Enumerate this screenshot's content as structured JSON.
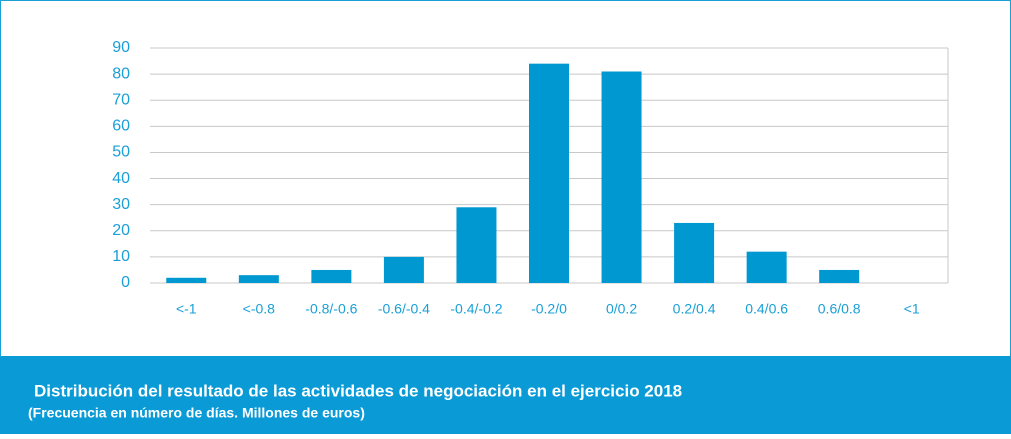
{
  "chart_data": {
    "type": "bar",
    "title": "Distribución del resultado de las actividades de negociación en el ejercicio 2018",
    "subtitle": "(Frecuencia en número de días. Millones de euros)",
    "categories": [
      "<-1",
      "<-0.8",
      "-0.8/-0.6",
      "-0.6/-0.4",
      "-0.4/-0.2",
      "-0.2/0",
      "0/0.2",
      "0.2/0.4",
      "0.4/0.6",
      "0.6/0.8",
      "<1"
    ],
    "values": [
      2,
      3,
      5,
      10,
      29,
      84,
      81,
      23,
      12,
      5,
      0
    ],
    "color": "#0098d0",
    "ylim": [
      0,
      90
    ],
    "yticks": [
      0,
      10,
      20,
      30,
      40,
      50,
      60,
      70,
      80,
      90
    ],
    "grid": true
  }
}
